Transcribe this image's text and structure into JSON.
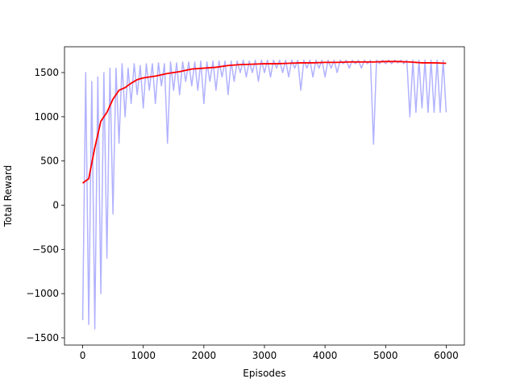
{
  "chart_data": {
    "type": "line",
    "xlabel": "Episodes",
    "ylabel": "Total Reward",
    "xlim": [
      -300,
      6300
    ],
    "ylim": [
      -1582,
      1792
    ],
    "xticks": [
      0,
      1000,
      2000,
      3000,
      4000,
      5000,
      6000
    ],
    "yticks": [
      {
        "value": -1500,
        "label": "−1500"
      },
      {
        "value": -1000,
        "label": "−1000"
      },
      {
        "value": -500,
        "label": "−500"
      },
      0,
      500,
      1000,
      1500
    ],
    "series": [
      {
        "color": "#b2b2ff",
        "x": [
          0,
          50,
          100,
          150,
          200,
          250,
          300,
          350,
          400,
          450,
          500,
          550,
          600,
          650,
          700,
          750,
          800,
          850,
          900,
          950,
          1000,
          1050,
          1100,
          1150,
          1200,
          1250,
          1300,
          1350,
          1400,
          1450,
          1500,
          1550,
          1600,
          1650,
          1700,
          1750,
          1800,
          1850,
          1900,
          1950,
          2000,
          2050,
          2100,
          2150,
          2200,
          2250,
          2300,
          2350,
          2400,
          2450,
          2500,
          2550,
          2600,
          2650,
          2700,
          2750,
          2800,
          2850,
          2900,
          2950,
          3000,
          3050,
          3100,
          3150,
          3200,
          3250,
          3300,
          3350,
          3400,
          3450,
          3500,
          3550,
          3600,
          3650,
          3700,
          3750,
          3800,
          3850,
          3900,
          3950,
          4000,
          4050,
          4100,
          4150,
          4200,
          4250,
          4300,
          4350,
          4400,
          4450,
          4500,
          4550,
          4600,
          4650,
          4700,
          4750,
          4800,
          4850,
          4900,
          4950,
          5000,
          5050,
          5100,
          5150,
          5200,
          5250,
          5300,
          5350,
          5400,
          5450,
          5500,
          5550,
          5600,
          5650,
          5700,
          5750,
          5800,
          5850,
          5900,
          5950,
          6000
        ],
        "values": [
          -1300,
          1500,
          -1350,
          1400,
          -1400,
          1450,
          -1000,
          1500,
          -600,
          1550,
          -100,
          1550,
          700,
          1600,
          1000,
          1550,
          1150,
          1600,
          1250,
          1580,
          1100,
          1600,
          1300,
          1600,
          1150,
          1610,
          1350,
          1600,
          700,
          1620,
          1300,
          1610,
          1250,
          1620,
          1400,
          1620,
          1350,
          1620,
          1300,
          1630,
          1150,
          1620,
          1400,
          1630,
          1300,
          1630,
          1450,
          1630,
          1250,
          1630,
          1400,
          1630,
          1500,
          1640,
          1450,
          1630,
          1500,
          1640,
          1400,
          1640,
          1500,
          1640,
          1450,
          1640,
          1550,
          1640,
          1500,
          1640,
          1450,
          1640,
          1550,
          1640,
          1300,
          1640,
          1550,
          1640,
          1450,
          1640,
          1550,
          1640,
          1450,
          1640,
          1550,
          1640,
          1500,
          1640,
          1600,
          1640,
          1550,
          1640,
          1600,
          1640,
          1550,
          1640,
          1600,
          1640,
          690,
          1640,
          1600,
          1640,
          1600,
          1640,
          1600,
          1640,
          1610,
          1640,
          1600,
          1640,
          1000,
          1640,
          1050,
          1640,
          1100,
          1640,
          1050,
          1640,
          1050,
          1640,
          1050,
          1640,
          1050
        ]
      },
      {
        "color": "#ff0000",
        "x": [
          0,
          100,
          200,
          300,
          400,
          500,
          600,
          700,
          800,
          900,
          1000,
          1200,
          1400,
          1600,
          1800,
          2000,
          2200,
          2400,
          2600,
          2800,
          3000,
          3200,
          3400,
          3600,
          3800,
          4000,
          4200,
          4400,
          4600,
          4800,
          5000,
          5200,
          5400,
          5600,
          5800,
          6000
        ],
        "values": [
          250,
          300,
          650,
          950,
          1050,
          1200,
          1300,
          1330,
          1380,
          1420,
          1440,
          1460,
          1490,
          1510,
          1540,
          1550,
          1560,
          1580,
          1590,
          1595,
          1600,
          1600,
          1605,
          1610,
          1610,
          1615,
          1615,
          1620,
          1620,
          1620,
          1625,
          1625,
          1620,
          1610,
          1610,
          1605
        ]
      }
    ]
  }
}
